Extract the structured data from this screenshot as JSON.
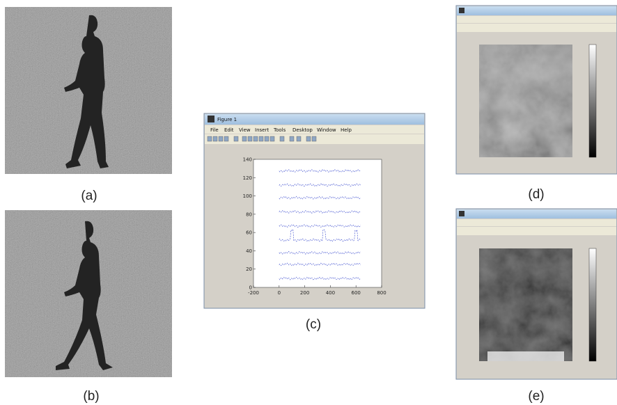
{
  "panels": [
    {
      "label": "(a)"
    },
    {
      "label": "(b)"
    },
    {
      "label": "(c)",
      "window": {
        "title": "Figure 1",
        "menu": [
          "File",
          "Edit",
          "View",
          "Insert",
          "Tools",
          "Desktop",
          "Window",
          "Help"
        ]
      },
      "plot": {
        "xlim": [
          -200,
          800
        ],
        "ylim": [
          0,
          140
        ],
        "xticks": [
          -200,
          0,
          200,
          400,
          600,
          800
        ],
        "yticks": [
          0,
          20,
          40,
          60,
          80,
          100,
          120,
          140
        ]
      }
    },
    {
      "label": "(d)"
    },
    {
      "label": "(e)"
    }
  ]
}
